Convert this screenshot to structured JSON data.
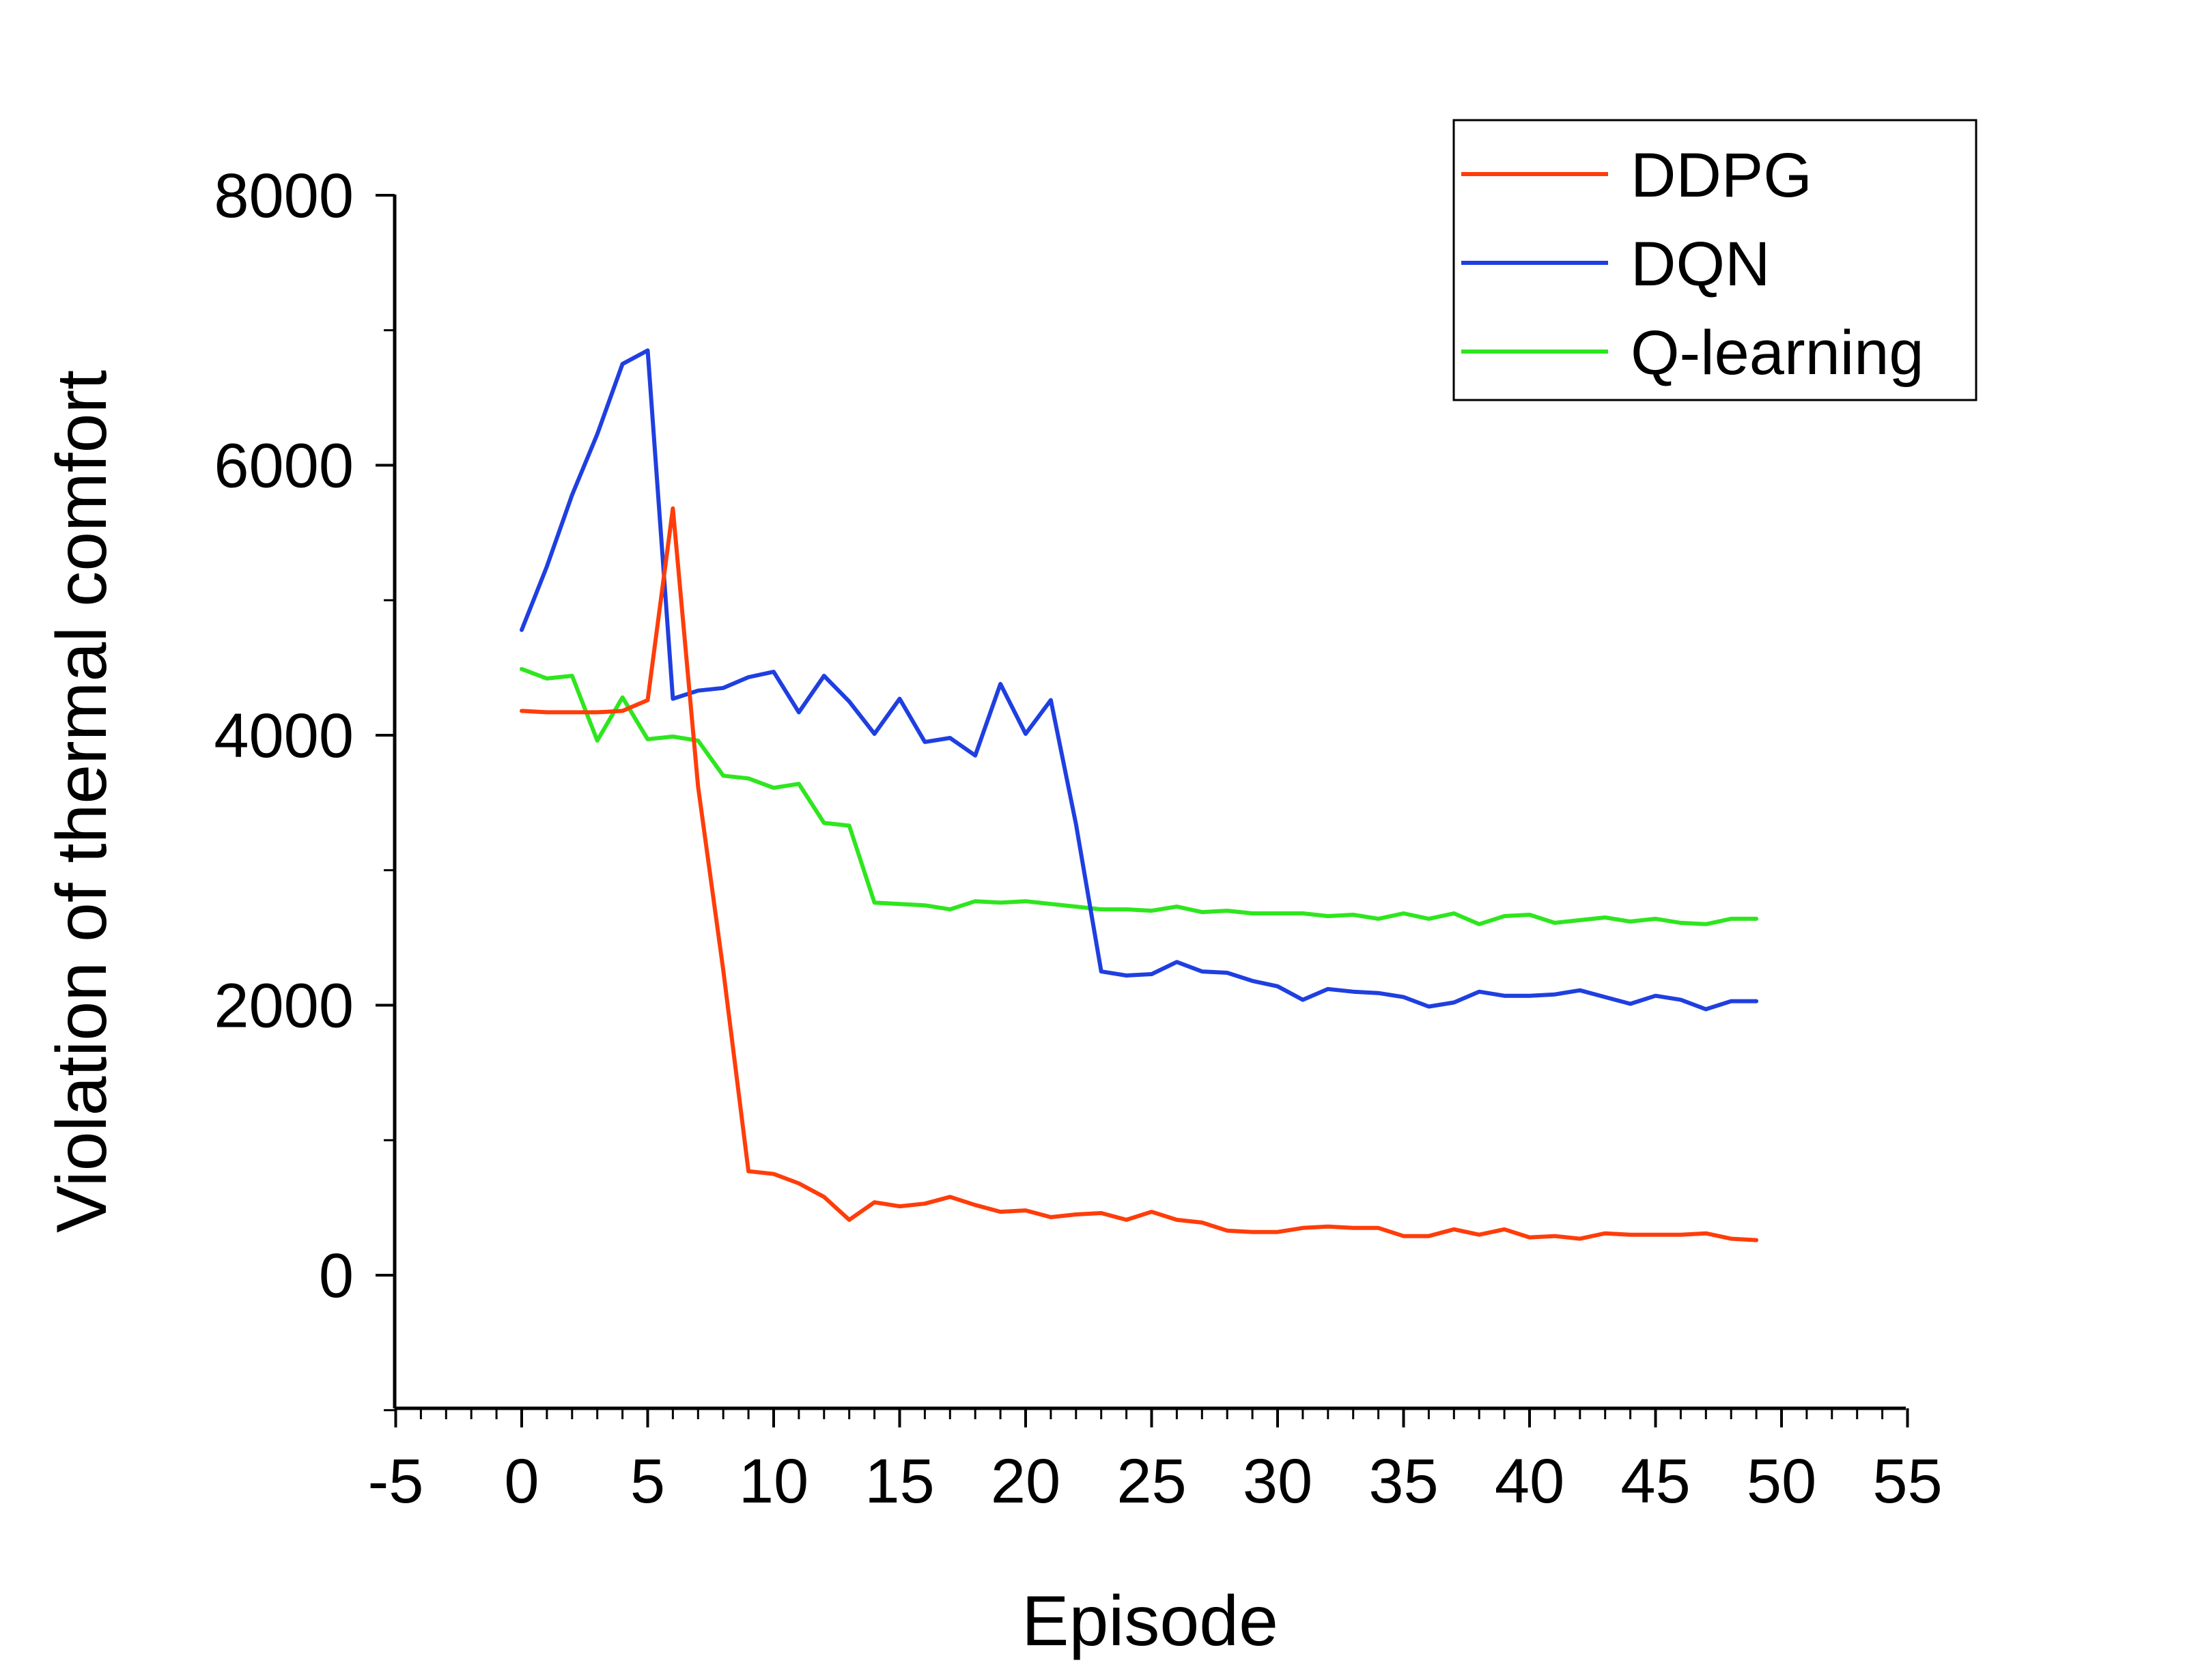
{
  "chart_data": {
    "type": "line",
    "xlabel": "Episode",
    "ylabel": "Violation of thermal comfort",
    "xlim": [
      -5,
      55
    ],
    "ylim": [
      -1000,
      8000
    ],
    "x_ticks": [
      -5,
      0,
      5,
      10,
      15,
      20,
      25,
      30,
      35,
      40,
      45,
      50,
      55
    ],
    "y_ticks": [
      0,
      2000,
      4000,
      6000,
      8000
    ],
    "x_minor_step": 1,
    "y_minor_step": 1000,
    "grid": false,
    "legend_position": "top-right",
    "x": [
      0,
      1,
      2,
      3,
      4,
      5,
      6,
      7,
      8,
      9,
      10,
      11,
      12,
      13,
      14,
      15,
      16,
      17,
      18,
      19,
      20,
      21,
      22,
      23,
      24,
      25,
      26,
      27,
      28,
      29,
      30,
      31,
      32,
      33,
      34,
      35,
      36,
      37,
      38,
      39,
      40,
      41,
      42,
      43,
      44,
      45,
      46,
      47,
      48,
      49
    ],
    "series": [
      {
        "name": "DDPG",
        "color": "#FF3D0A",
        "values": [
          4180,
          4170,
          4170,
          4170,
          4180,
          4260,
          5680,
          3620,
          2260,
          770,
          750,
          680,
          580,
          410,
          540,
          510,
          530,
          580,
          520,
          470,
          480,
          430,
          450,
          460,
          410,
          470,
          410,
          390,
          330,
          320,
          320,
          350,
          360,
          350,
          350,
          290,
          290,
          340,
          300,
          340,
          280,
          290,
          270,
          310,
          300,
          300,
          300,
          310,
          270,
          260
        ]
      },
      {
        "name": "DQN",
        "color": "#1F3FE0",
        "values": [
          4780,
          5250,
          5780,
          6230,
          6750,
          6850,
          4270,
          4330,
          4350,
          4430,
          4470,
          4170,
          4440,
          4250,
          4010,
          4270,
          3950,
          3980,
          3850,
          4380,
          4010,
          4260,
          3340,
          2250,
          2220,
          2230,
          2320,
          2250,
          2240,
          2180,
          2140,
          2040,
          2120,
          2100,
          2090,
          2060,
          1990,
          2020,
          2100,
          2070,
          2070,
          2080,
          2110,
          2060,
          2010,
          2070,
          2040,
          1970,
          2030,
          2030
        ]
      },
      {
        "name": "Q-learning",
        "color": "#2EE61E",
        "values": [
          4490,
          4420,
          4440,
          3960,
          4280,
          3970,
          3990,
          3960,
          3700,
          3680,
          3610,
          3640,
          3350,
          3330,
          2760,
          2750,
          2740,
          2710,
          2770,
          2760,
          2770,
          2750,
          2730,
          2710,
          2710,
          2700,
          2730,
          2690,
          2700,
          2680,
          2680,
          2680,
          2660,
          2670,
          2640,
          2680,
          2640,
          2680,
          2600,
          2660,
          2670,
          2610,
          2630,
          2650,
          2620,
          2640,
          2610,
          2600,
          2640,
          2640
        ]
      }
    ]
  }
}
